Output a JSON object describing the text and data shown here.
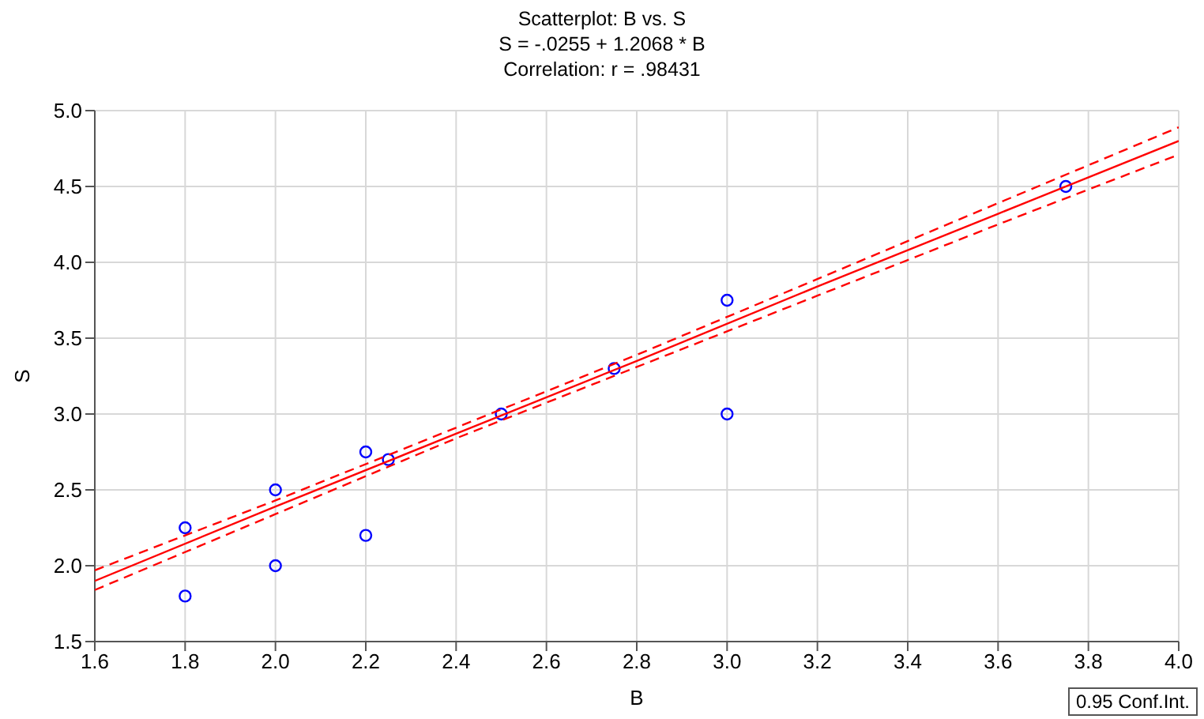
{
  "chart_data": {
    "type": "scatter",
    "title": "Scatterplot: B vs. S",
    "subtitle": "S = -.0255 + 1.2068 * B\nCorrelation: r = .98431",
    "xlabel": "B",
    "ylabel": "S",
    "series": [
      {
        "color": "#0000ff",
        "x": [
          1.8,
          1.8,
          2.0,
          2.0,
          2.2,
          2.2,
          2.25,
          2.5,
          2.75,
          3.0,
          3.0,
          3.75
        ],
        "values": [
          1.8,
          2.25,
          2.0,
          2.5,
          2.2,
          2.75,
          2.7,
          3.0,
          3.3,
          3.0,
          3.75,
          4.5
        ]
      },
      {
        "type": "line",
        "color": "#ff0000",
        "marker": "none",
        "line_style": "solid",
        "x": [
          1.6,
          2.0,
          2.4,
          2.8,
          3.2,
          3.6,
          4.0
        ],
        "values": [
          1.9,
          2.39,
          2.87,
          3.35,
          3.84,
          4.32,
          4.8
        ]
      },
      {
        "type": "line",
        "color": "#ff0000",
        "marker": "none",
        "line_style": "dashed",
        "x": [
          1.6,
          2.0,
          2.4,
          2.8,
          3.2,
          3.6,
          4.0
        ],
        "values": [
          1.84,
          2.34,
          2.84,
          3.31,
          3.78,
          4.25,
          4.71
        ]
      },
      {
        "type": "line",
        "color": "#ff0000",
        "marker": "none",
        "line_style": "dashed",
        "x": [
          1.6,
          2.0,
          2.4,
          2.8,
          3.2,
          3.6,
          4.0
        ],
        "values": [
          1.97,
          2.43,
          2.91,
          3.39,
          3.89,
          4.39,
          4.89
        ]
      }
    ],
    "xlim": [
      1.6,
      4.0
    ],
    "xticks": [
      {
        "value": 1.6,
        "label": "1.6"
      },
      {
        "value": 1.8,
        "label": "1.8"
      },
      {
        "value": 2.0,
        "label": "2.0"
      },
      {
        "value": 2.2,
        "label": "2.2"
      },
      {
        "value": 2.4,
        "label": "2.4"
      },
      {
        "value": 2.6,
        "label": "2.6"
      },
      {
        "value": 2.8,
        "label": "2.8"
      },
      {
        "value": 3.0,
        "label": "3.0"
      },
      {
        "value": 3.2,
        "label": "3.2"
      },
      {
        "value": 3.4,
        "label": "3.4"
      },
      {
        "value": 3.6,
        "label": "3.6"
      },
      {
        "value": 3.8,
        "label": "3.8"
      },
      {
        "value": 4.0,
        "label": "4.0"
      }
    ],
    "ylim": [
      1.5,
      5.0
    ],
    "yticks": [
      {
        "value": 1.5,
        "label": "1.5"
      },
      {
        "value": 2.0,
        "label": "2.0"
      },
      {
        "value": 2.5,
        "label": "2.5"
      },
      {
        "value": 3.0,
        "label": "3.0"
      },
      {
        "value": 3.5,
        "label": "3.5"
      },
      {
        "value": 4.0,
        "label": "4.0"
      },
      {
        "value": 4.5,
        "label": "4.5"
      },
      {
        "value": 5.0,
        "label": "5.0"
      }
    ],
    "grid": true,
    "marker": "circle",
    "annotations": [
      "0.95 Conf.Int."
    ]
  }
}
